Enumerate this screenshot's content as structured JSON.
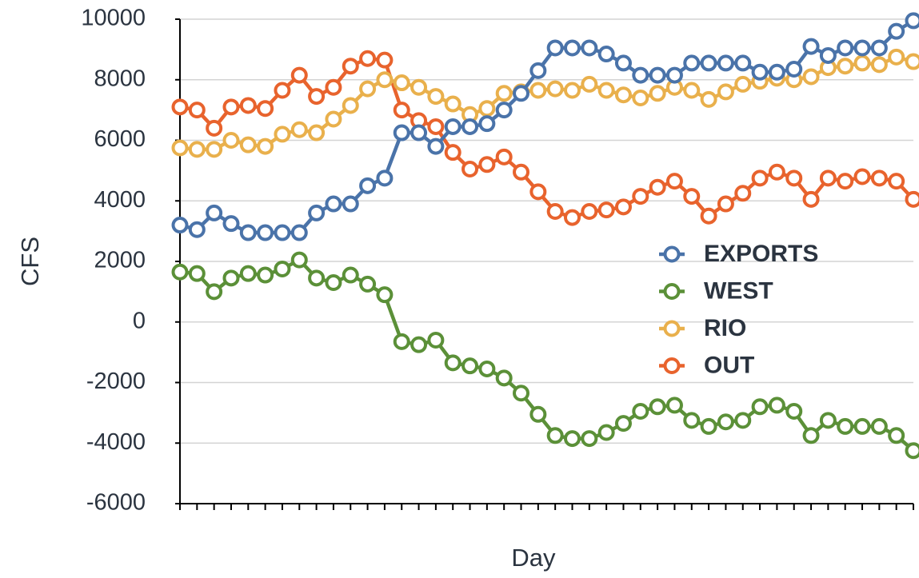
{
  "chart_data": {
    "type": "line",
    "x_label": "Day",
    "y_label": "CFS",
    "categories": [
      null,
      null,
      null,
      null,
      null,
      null,
      null,
      null,
      null,
      null,
      null,
      null,
      null,
      null,
      null,
      null,
      null,
      null,
      null,
      null,
      null,
      null,
      null,
      null,
      null,
      null,
      null,
      null,
      null,
      null,
      null,
      null,
      null,
      null,
      null,
      null,
      null,
      null,
      null,
      null,
      null,
      null,
      null,
      null
    ],
    "series": [
      {
        "name": "EXPORTS",
        "color": "#4a73a9",
        "values": [
          3200,
          3050,
          3600,
          3250,
          2950,
          2950,
          2950,
          2950,
          3600,
          3900,
          3900,
          4500,
          4750,
          6250,
          6250,
          5800,
          6450,
          6450,
          6550,
          7000,
          7550,
          8300,
          9050,
          9050,
          9050,
          8850,
          8550,
          8150,
          8150,
          8150,
          8550,
          8550,
          8550,
          8550,
          8250,
          8250,
          8350,
          9100,
          8800,
          9050,
          9050,
          9050,
          9600,
          9950
        ]
      },
      {
        "name": "WEST",
        "color": "#5b9038",
        "values": [
          1650,
          1600,
          1000,
          1450,
          1600,
          1550,
          1750,
          2050,
          1450,
          1300,
          1550,
          1250,
          900,
          -650,
          -750,
          -600,
          -1350,
          -1450,
          -1550,
          -1850,
          -2350,
          -3050,
          -3750,
          -3850,
          -3850,
          -3650,
          -3350,
          -2950,
          -2800,
          -2750,
          -3250,
          -3450,
          -3300,
          -3250,
          -2800,
          -2750,
          -2950,
          -3750,
          -3250,
          -3450,
          -3450,
          -3450,
          -3750,
          -4250
        ]
      },
      {
        "name": "RIO",
        "color": "#e9b04c",
        "values": [
          5750,
          5700,
          5700,
          6000,
          5850,
          5800,
          6200,
          6350,
          6250,
          6700,
          7150,
          7700,
          8000,
          7900,
          7750,
          7450,
          7200,
          6850,
          7050,
          7550,
          7600,
          7650,
          7700,
          7650,
          7850,
          7650,
          7500,
          7400,
          7550,
          7750,
          7650,
          7350,
          7600,
          7850,
          7950,
          8050,
          8000,
          8100,
          8400,
          8450,
          8550,
          8500,
          8750,
          8600
        ]
      },
      {
        "name": "OUT",
        "color": "#e8632d",
        "values": [
          7100,
          7000,
          6400,
          7100,
          7150,
          7050,
          7650,
          8150,
          7450,
          7750,
          8450,
          8700,
          8650,
          7000,
          6650,
          6450,
          5600,
          5050,
          5200,
          5450,
          4950,
          4300,
          3650,
          3450,
          3650,
          3700,
          3800,
          4150,
          4450,
          4650,
          4150,
          3500,
          3900,
          4250,
          4750,
          4950,
          4750,
          4050,
          4750,
          4650,
          4800,
          4750,
          4650,
          4050
        ]
      }
    ],
    "ylim": [
      -6000,
      10000
    ],
    "yticks": [
      -6000,
      -4000,
      -2000,
      0,
      2000,
      4000,
      6000,
      8000,
      10000
    ],
    "grid": true,
    "legend": "center right",
    "markers": "open-circle"
  }
}
